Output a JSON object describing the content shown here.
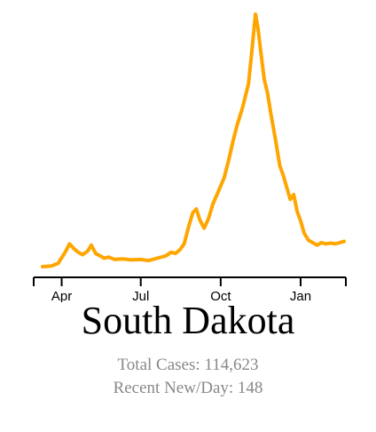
{
  "chart_data": {
    "type": "line",
    "x_axis": {
      "ticks": [
        "Apr",
        "Jul",
        "Oct",
        "Jan"
      ]
    },
    "series": [
      {
        "color": "#FFA500",
        "points": [
          [
            "2020-03-10",
            0
          ],
          [
            "2020-03-20",
            3
          ],
          [
            "2020-03-28",
            14
          ],
          [
            "2020-04-05",
            60
          ],
          [
            "2020-04-10",
            95
          ],
          [
            "2020-04-15",
            75
          ],
          [
            "2020-04-20",
            60
          ],
          [
            "2020-04-25",
            50
          ],
          [
            "2020-05-01",
            65
          ],
          [
            "2020-05-05",
            90
          ],
          [
            "2020-05-10",
            55
          ],
          [
            "2020-05-15",
            45
          ],
          [
            "2020-05-20",
            35
          ],
          [
            "2020-05-25",
            40
          ],
          [
            "2020-06-01",
            30
          ],
          [
            "2020-06-10",
            32
          ],
          [
            "2020-06-20",
            28
          ],
          [
            "2020-07-01",
            30
          ],
          [
            "2020-07-10",
            25
          ],
          [
            "2020-07-20",
            35
          ],
          [
            "2020-07-30",
            45
          ],
          [
            "2020-08-05",
            60
          ],
          [
            "2020-08-10",
            55
          ],
          [
            "2020-08-15",
            70
          ],
          [
            "2020-08-20",
            95
          ],
          [
            "2020-08-25",
            165
          ],
          [
            "2020-08-30",
            225
          ],
          [
            "2020-09-03",
            240
          ],
          [
            "2020-09-07",
            195
          ],
          [
            "2020-09-12",
            160
          ],
          [
            "2020-09-17",
            200
          ],
          [
            "2020-09-22",
            260
          ],
          [
            "2020-09-28",
            310
          ],
          [
            "2020-10-05",
            370
          ],
          [
            "2020-10-10",
            440
          ],
          [
            "2020-10-15",
            520
          ],
          [
            "2020-10-20",
            590
          ],
          [
            "2020-10-26",
            660
          ],
          [
            "2020-11-02",
            760
          ],
          [
            "2020-11-06",
            900
          ],
          [
            "2020-11-10",
            1050
          ],
          [
            "2020-11-13",
            990
          ],
          [
            "2020-11-16",
            900
          ],
          [
            "2020-11-20",
            780
          ],
          [
            "2020-11-24",
            720
          ],
          [
            "2020-11-28",
            630
          ],
          [
            "2020-12-03",
            530
          ],
          [
            "2020-12-08",
            420
          ],
          [
            "2020-12-12",
            380
          ],
          [
            "2020-12-16",
            330
          ],
          [
            "2020-12-20",
            280
          ],
          [
            "2020-12-24",
            300
          ],
          [
            "2020-12-28",
            230
          ],
          [
            "2021-01-01",
            190
          ],
          [
            "2021-01-05",
            140
          ],
          [
            "2021-01-10",
            110
          ],
          [
            "2021-01-15",
            100
          ],
          [
            "2021-01-20",
            90
          ],
          [
            "2021-01-25",
            100
          ],
          [
            "2021-01-30",
            95
          ],
          [
            "2021-02-05",
            98
          ],
          [
            "2021-02-10",
            95
          ],
          [
            "2021-02-15",
            100
          ],
          [
            "2021-02-20",
            105
          ]
        ]
      }
    ]
  },
  "labels": {
    "state_name": "South Dakota",
    "total_cases": "Total Cases: 114,623",
    "recent_new_per_day": "Recent New/Day: 148"
  }
}
